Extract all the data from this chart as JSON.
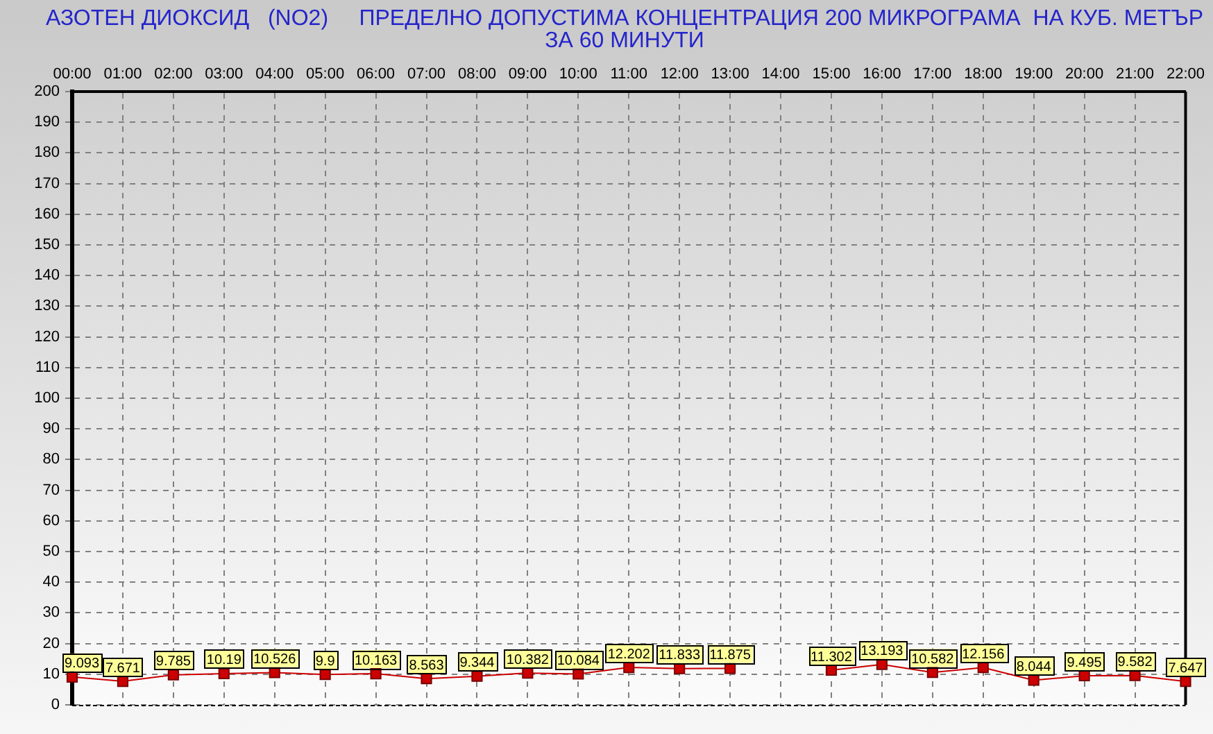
{
  "chart_data": {
    "type": "line",
    "title": "АЗОТЕН ДИОКСИД   (NO2)     ПРЕДЕЛНО ДОПУСТИМА КОНЦЕНТРАЦИЯ 200 МИКРОГРАМА  НА КУБ. МЕТЪР ЗА 60 МИНУТИ",
    "categories": [
      "00:00",
      "01:00",
      "02:00",
      "03:00",
      "04:00",
      "05:00",
      "06:00",
      "07:00",
      "08:00",
      "09:00",
      "10:00",
      "11:00",
      "12:00",
      "13:00",
      "14:00",
      "15:00",
      "16:00",
      "17:00",
      "18:00",
      "19:00",
      "20:00",
      "21:00",
      "22:00"
    ],
    "series": [
      {
        "color": "#cc0000",
        "values": [
          9.093,
          7.671,
          9.785,
          10.19,
          10.526,
          9.9,
          10.163,
          8.563,
          9.344,
          10.382,
          10.084,
          12.202,
          11.833,
          11.875,
          null,
          11.302,
          13.193,
          10.582,
          12.156,
          8.044,
          9.495,
          9.582,
          7.647
        ]
      }
    ],
    "ylim": [
      0,
      200
    ],
    "yticks": [
      0,
      10,
      20,
      30,
      40,
      50,
      60,
      70,
      80,
      90,
      100,
      110,
      120,
      130,
      140,
      150,
      160,
      170,
      180,
      190,
      200
    ],
    "grid": true,
    "marker": "square",
    "data_labels": true
  }
}
